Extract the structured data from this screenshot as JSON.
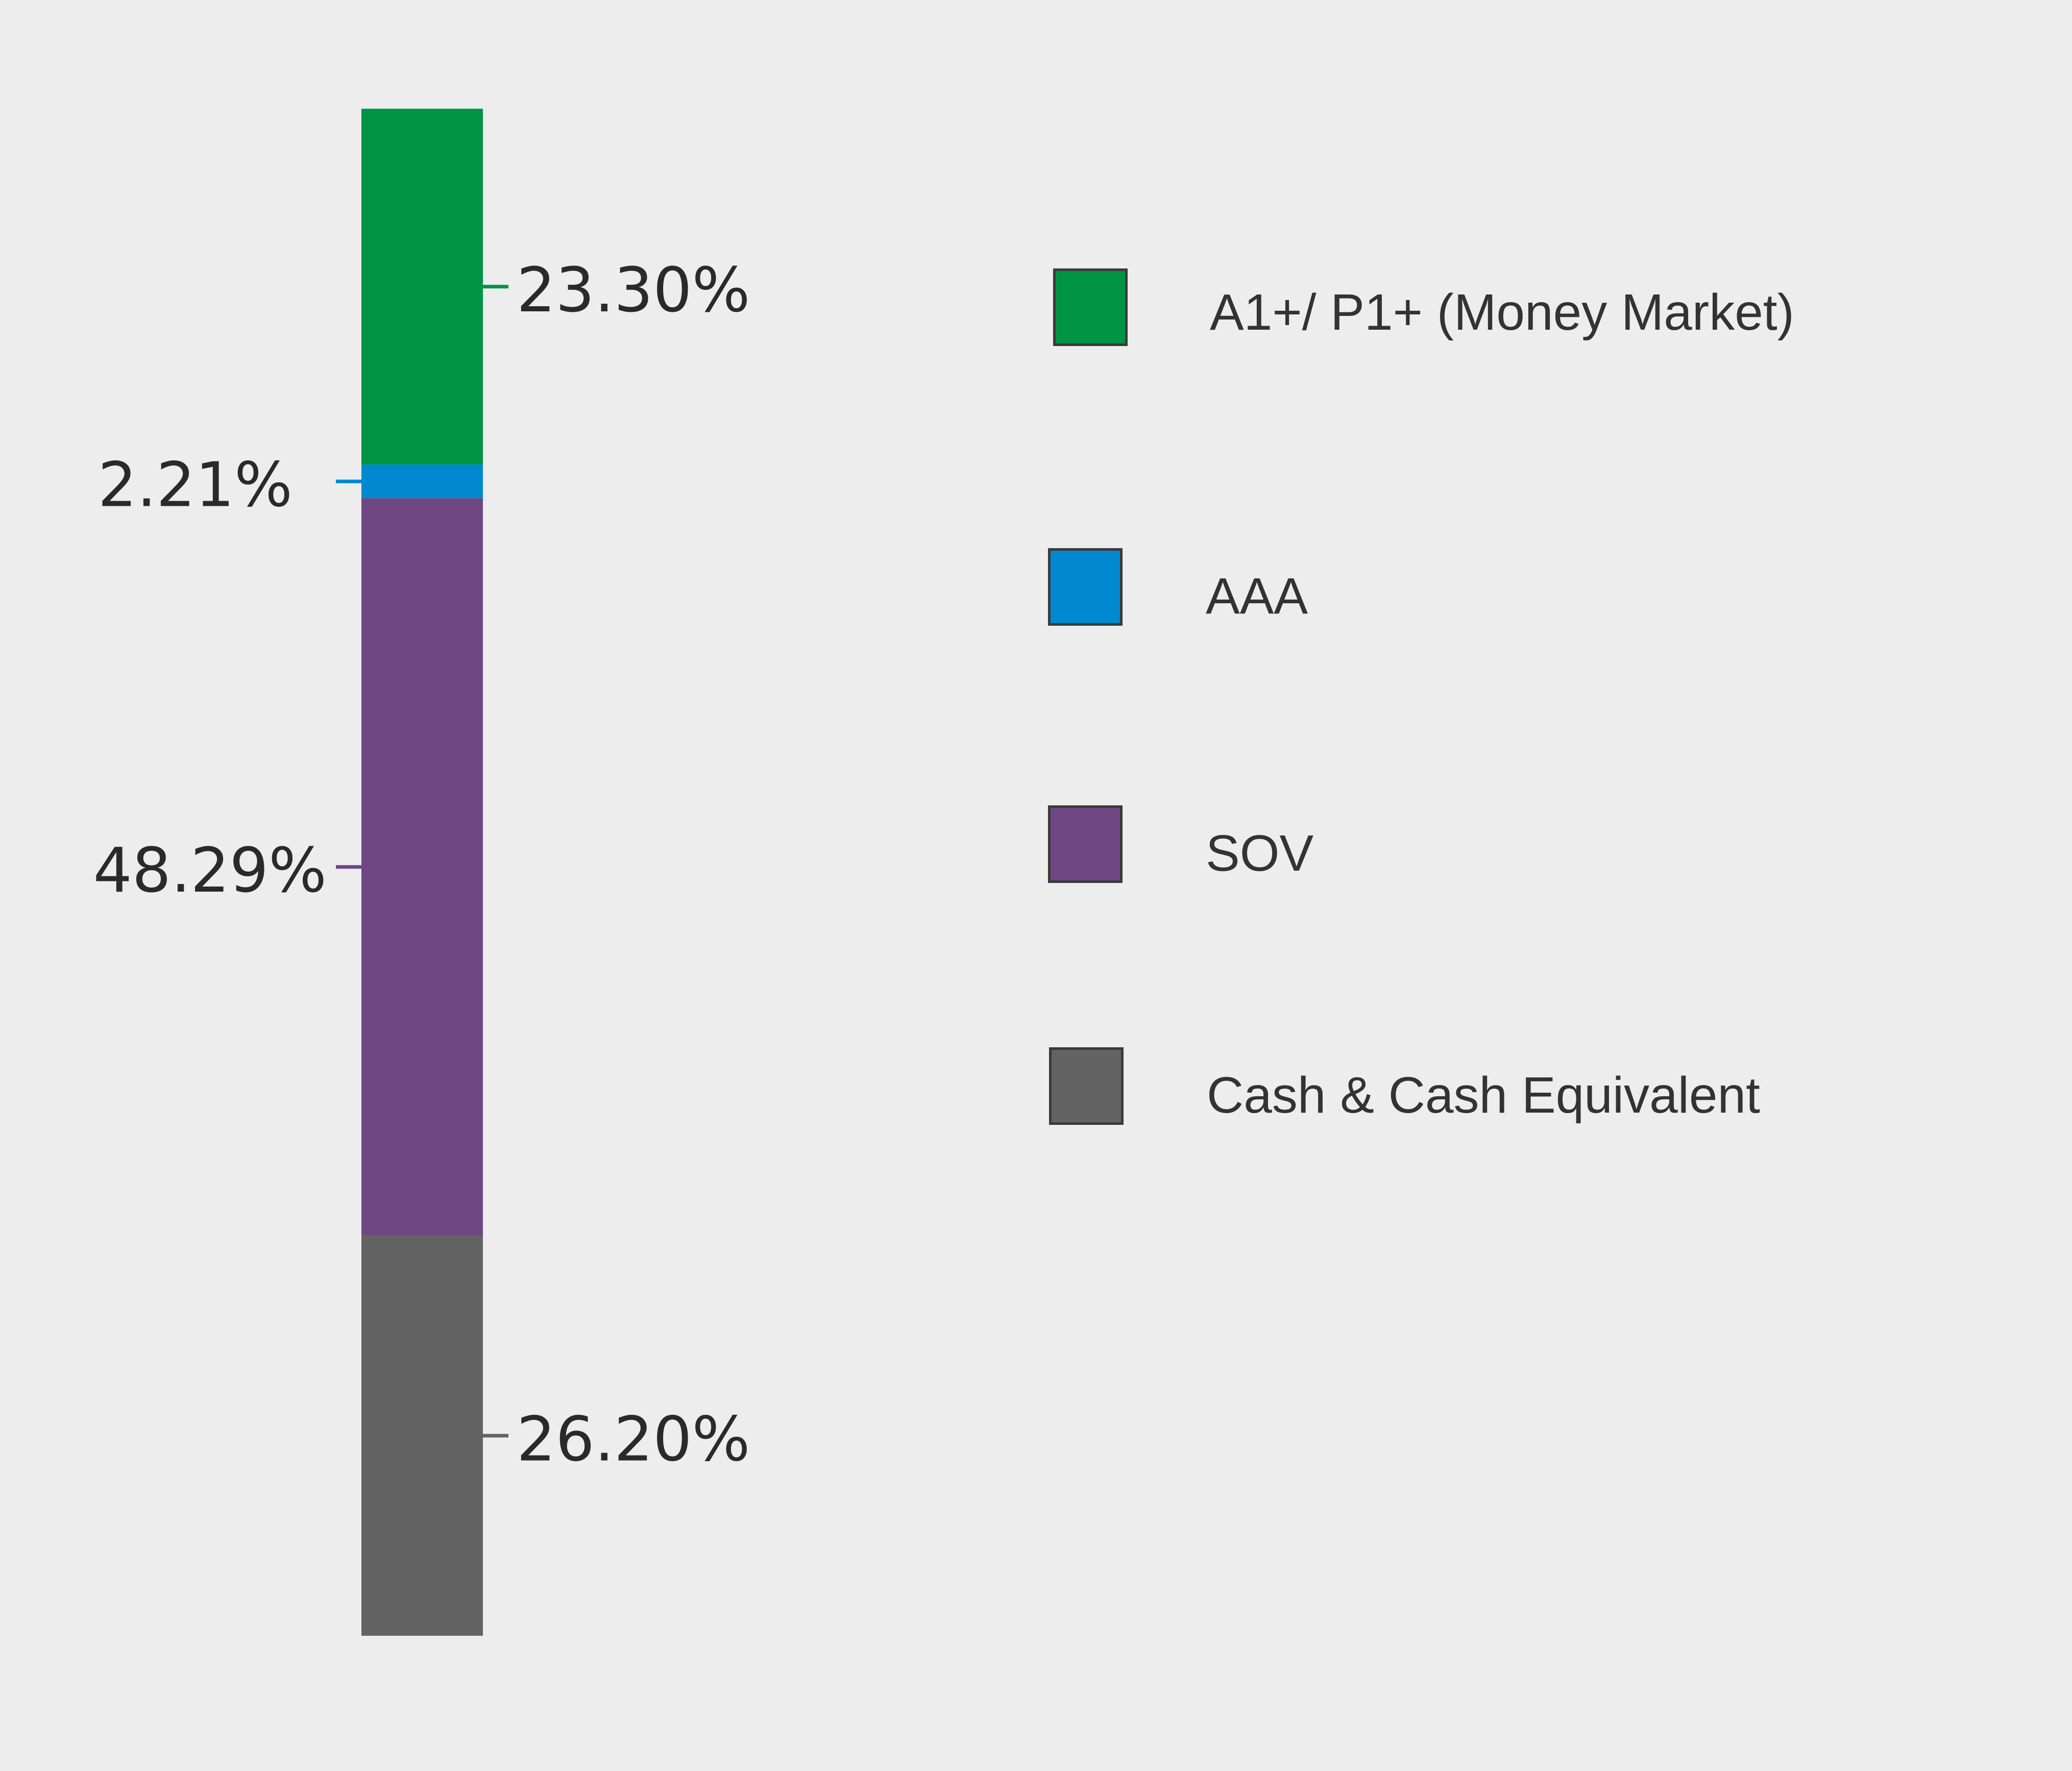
{
  "chart_data": {
    "type": "bar",
    "stacked": true,
    "orientation": "vertical",
    "categories": [
      ""
    ],
    "series": [
      {
        "name": "A1+/ P1+ (Money Market)",
        "value": 23.3,
        "label": "23.30%",
        "color": "#009444",
        "label_side": "right"
      },
      {
        "name": "AAA",
        "value": 2.21,
        "label": "2.21%",
        "color": "#0088d1",
        "label_side": "left"
      },
      {
        "name": "SOV",
        "value": 48.29,
        "label": "48.29%",
        "color": "#6f4783",
        "label_side": "left"
      },
      {
        "name": "Cash & Cash Equivalent",
        "value": 26.2,
        "label": "26.20%",
        "color": "#636363",
        "label_side": "right"
      }
    ],
    "stack_order": "top-to-bottom",
    "legend_position": "right",
    "grid": false
  }
}
